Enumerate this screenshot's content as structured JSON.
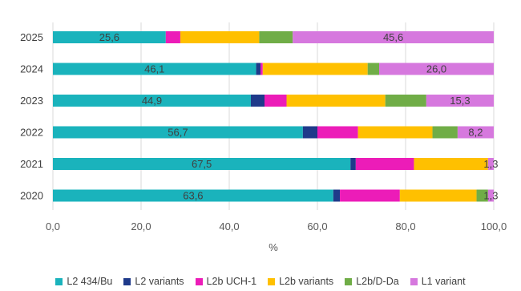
{
  "chart_data": {
    "type": "bar",
    "orientation": "horizontal",
    "stacked": true,
    "categories": [
      "2025",
      "2024",
      "2023",
      "2022",
      "2021",
      "2020"
    ],
    "series": [
      {
        "name": "L2 434/Bu",
        "color": "#1AB3BC",
        "values": [
          25.6,
          46.1,
          44.9,
          56.7,
          67.5,
          63.6
        ]
      },
      {
        "name": "L2 variants",
        "color": "#1F3A8A",
        "values": [
          0.0,
          1.0,
          3.1,
          3.3,
          1.2,
          1.5
        ]
      },
      {
        "name": "L2b UCH-1",
        "color": "#EC1CB8",
        "values": [
          3.3,
          0.5,
          5.0,
          9.2,
          13.2,
          13.6
        ]
      },
      {
        "name": "L2b variants",
        "color": "#FFC000",
        "values": [
          17.9,
          23.8,
          22.4,
          16.9,
          16.8,
          17.4
        ]
      },
      {
        "name": "L2b/D-Da",
        "color": "#70AD47",
        "values": [
          7.6,
          2.6,
          9.3,
          5.7,
          0.0,
          2.6
        ]
      },
      {
        "name": "L1 variant",
        "color": "#D678DE",
        "values": [
          45.6,
          26.0,
          15.3,
          8.2,
          1.3,
          1.3
        ]
      }
    ],
    "data_labels": [
      {
        "category": "2025",
        "series": "L2 434/Bu",
        "text": "25,6"
      },
      {
        "category": "2025",
        "series": "L1 variant",
        "text": "45,6"
      },
      {
        "category": "2024",
        "series": "L2 434/Bu",
        "text": "46,1"
      },
      {
        "category": "2024",
        "series": "L1 variant",
        "text": "26,0"
      },
      {
        "category": "2023",
        "series": "L2 434/Bu",
        "text": "44,9"
      },
      {
        "category": "2023",
        "series": "L1 variant",
        "text": "15,3"
      },
      {
        "category": "2022",
        "series": "L2 434/Bu",
        "text": "56,7"
      },
      {
        "category": "2022",
        "series": "L1 variant",
        "text": "8,2"
      },
      {
        "category": "2021",
        "series": "L2 434/Bu",
        "text": "67,5"
      },
      {
        "category": "2021",
        "series": "L1 variant",
        "text": "1,3"
      },
      {
        "category": "2020",
        "series": "L2 434/Bu",
        "text": "63,6"
      },
      {
        "category": "2020",
        "series": "L1 variant",
        "text": "1,3"
      }
    ],
    "xlabel": "%",
    "xlim": [
      0,
      100
    ],
    "xticks": [
      "0,0",
      "20,0",
      "40,0",
      "60,0",
      "80,0",
      "100,0"
    ],
    "grid": true,
    "legend_position": "bottom"
  }
}
